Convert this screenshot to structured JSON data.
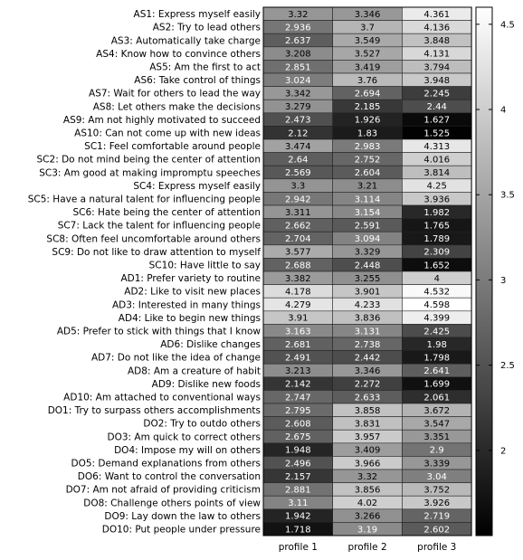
{
  "chart_data": {
    "type": "heatmap",
    "columns": [
      "profile 1",
      "profile 2",
      "profile 3"
    ],
    "rows": [
      "AS1: Express myself easily",
      "AS2: Try to lead others",
      "AS3: Automatically take charge",
      "AS4: Know how to convince others",
      "AS5: Am the first to act",
      "AS6: Take control of things",
      "AS7: Wait for others to lead the way",
      "AS8: Let others make the decisions",
      "AS9: Am not highly motivated to succeed",
      "AS10: Can not come up with new ideas",
      "SC1: Feel comfortable around people",
      "SC2: Do not mind being the center of attention",
      "SC3: Am good at making impromptu speeches",
      "SC4: Express myself easily",
      "SC5: Have a natural talent for influencing people",
      "SC6: Hate being the center of attention",
      "SC7: Lack the talent for influencing people",
      "SC8: Often feel uncomfortable around others",
      "SC9: Do not like to draw attention to myself",
      "SC10: Have little to say",
      "AD1: Prefer variety to routine",
      "AD2: Like to visit new places",
      "AD3: Interested in many things",
      "AD4: Like to begin new things",
      "AD5: Prefer to stick with things that I know",
      "AD6: Dislike changes",
      "AD7: Do not like the idea of change",
      "AD8: Am a creature of habit",
      "AD9: Dislike new foods",
      "AD10: Am attached to conventional ways",
      "DO1: Try to surpass others accomplishments",
      "DO2: Try to outdo others",
      "DO3: Am quick to correct others",
      "DO4: Impose my will on others",
      "DO5: Demand explanations from others",
      "DO6: Want to control the conversation",
      "DO7: Am not afraid of providing criticism",
      "DO8: Challenge others points of view",
      "DO9: Lay down the law to others",
      "DO10: Put people under pressure"
    ],
    "values": [
      [
        "3.32",
        "3.346",
        "4.361"
      ],
      [
        "2.936",
        "3.7",
        "4.136"
      ],
      [
        "2.637",
        "3.549",
        "3.848"
      ],
      [
        "3.208",
        "3.527",
        "4.131"
      ],
      [
        "2.851",
        "3.419",
        "3.794"
      ],
      [
        "3.024",
        "3.76",
        "3.948"
      ],
      [
        "3.342",
        "2.694",
        "2.245"
      ],
      [
        "3.279",
        "2.185",
        "2.44"
      ],
      [
        "2.473",
        "1.926",
        "1.627"
      ],
      [
        "2.12",
        "1.83",
        "1.525"
      ],
      [
        "3.474",
        "2.983",
        "4.313"
      ],
      [
        "2.64",
        "2.752",
        "4.016"
      ],
      [
        "2.569",
        "2.604",
        "3.814"
      ],
      [
        "3.3",
        "3.21",
        "4.25"
      ],
      [
        "2.942",
        "3.114",
        "3.936"
      ],
      [
        "3.311",
        "3.154",
        "1.982"
      ],
      [
        "2.662",
        "2.591",
        "1.765"
      ],
      [
        "2.704",
        "3.094",
        "1.789"
      ],
      [
        "3.577",
        "3.329",
        "2.309"
      ],
      [
        "2.688",
        "2.448",
        "1.652"
      ],
      [
        "3.382",
        "3.255",
        "4"
      ],
      [
        "4.178",
        "3.901",
        "4.532"
      ],
      [
        "4.279",
        "4.233",
        "4.598"
      ],
      [
        "3.91",
        "3.836",
        "4.399"
      ],
      [
        "3.163",
        "3.131",
        "2.425"
      ],
      [
        "2.681",
        "2.738",
        "1.98"
      ],
      [
        "2.491",
        "2.442",
        "1.798"
      ],
      [
        "3.213",
        "3.346",
        "2.641"
      ],
      [
        "2.142",
        "2.272",
        "1.699"
      ],
      [
        "2.747",
        "2.633",
        "2.061"
      ],
      [
        "2.795",
        "3.858",
        "3.672"
      ],
      [
        "2.608",
        "3.831",
        "3.547"
      ],
      [
        "2.675",
        "3.957",
        "3.351"
      ],
      [
        "1.948",
        "3.409",
        "2.9"
      ],
      [
        "2.496",
        "3.966",
        "3.339"
      ],
      [
        "2.157",
        "3.32",
        "3.04"
      ],
      [
        "2.881",
        "3.856",
        "3.752"
      ],
      [
        "3.11",
        "4.02",
        "3.926"
      ],
      [
        "1.942",
        "3.266",
        "2.719"
      ],
      [
        "1.718",
        "3.19",
        "2.602"
      ]
    ],
    "colorbar": {
      "min": 1.5,
      "max": 4.6,
      "ticks": [
        "2",
        "2.5",
        "3",
        "3.5",
        "4",
        "4.5"
      ],
      "colormap": "grayscale (black = low, white = high)"
    }
  }
}
